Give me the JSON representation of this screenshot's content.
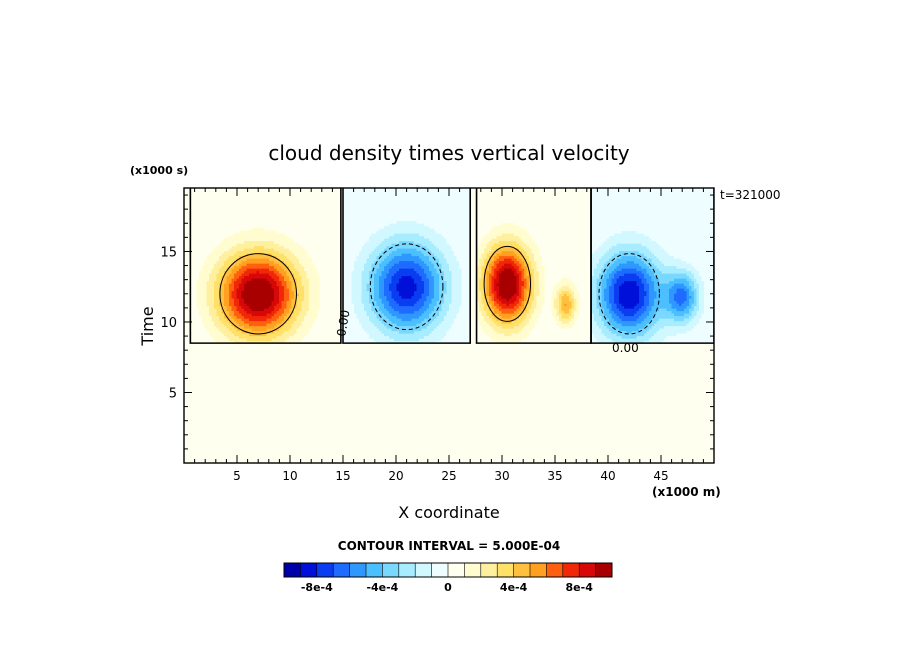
{
  "chart_data": {
    "type": "heatmap",
    "title": "cloud density times vertical velocity",
    "xlabel": "X coordinate",
    "ylabel": "Time",
    "x_unit": "(x1000 m)",
    "y_unit": "(x1000 s)",
    "time_stamp": "t=321000",
    "contour_interval": "CONTOUR INTERVAL = 5.000E-04",
    "xlim": [
      0,
      50
    ],
    "ylim": [
      0,
      19.5
    ],
    "x_ticks": [
      5,
      10,
      15,
      20,
      25,
      30,
      35,
      40,
      45
    ],
    "y_ticks": [
      5,
      10,
      15
    ],
    "zero_contour_labels": [
      "0.00",
      "0.00"
    ],
    "colorbar": {
      "levels": [
        -0.001,
        -0.0009,
        -0.0008,
        -0.0007,
        -0.0006,
        -0.0005,
        -0.0004,
        -0.0003,
        -0.0002,
        -0.0001,
        0,
        0.0001,
        0.0002,
        0.0003,
        0.0004,
        0.0005,
        0.0006,
        0.0007,
        0.0008,
        0.0009,
        0.001
      ],
      "colors": [
        "#0000a8",
        "#0010d8",
        "#0a3cf0",
        "#1e6cff",
        "#2f98ff",
        "#4cc0ff",
        "#7ad8ff",
        "#a8ecff",
        "#d2f8ff",
        "#eefdff",
        "#fffff0",
        "#fffcd0",
        "#fff0a0",
        "#ffe068",
        "#ffc040",
        "#ffa020",
        "#ff6010",
        "#f02808",
        "#d80808",
        "#a80000"
      ],
      "tick_labels": [
        "-8e-4",
        "-4e-4",
        "0",
        "4e-4",
        "8e-4"
      ],
      "tick_values": [
        -0.0008,
        -0.0004,
        0,
        0.0004,
        0.0008
      ]
    },
    "cells": [
      {
        "x": 7,
        "y": 12,
        "sx": 3.8,
        "sy": 3.0,
        "amp": 0.00105
      },
      {
        "x": 21,
        "y": 12.5,
        "sx": 3.6,
        "sy": 3.2,
        "amp": -0.00085
      },
      {
        "x": 30.5,
        "y": 12.7,
        "sx": 2.3,
        "sy": 2.8,
        "amp": 0.00105
      },
      {
        "x": 36,
        "y": 11.3,
        "sx": 1.0,
        "sy": 1.4,
        "amp": 0.0005
      },
      {
        "x": 42,
        "y": 12,
        "sx": 3.0,
        "sy": 3.0,
        "amp": -0.0009
      },
      {
        "x": 47,
        "y": 11.8,
        "sx": 1.6,
        "sy": 1.8,
        "amp": -0.0006
      }
    ],
    "cell_x_bounds": [
      [
        0.6,
        14.8
      ],
      [
        15.0,
        27.0
      ],
      [
        27.6,
        38.4
      ],
      [
        38.4,
        50
      ]
    ],
    "field_y_bottom": 8.5
  }
}
